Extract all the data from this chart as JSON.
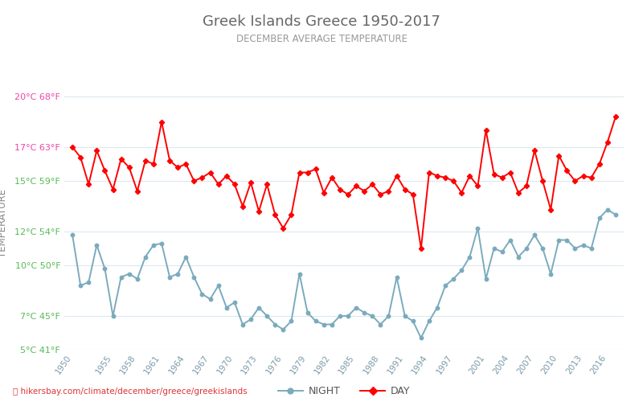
{
  "title": "Greek Islands Greece 1950-2017",
  "subtitle": "DECEMBER AVERAGE TEMPERATURE",
  "ylabel": "TEMPERATURE",
  "xlabel_url": "hikersbay.com/climate/december/greece/greekislands",
  "ylim_celsius": [
    5,
    20
  ],
  "yticks_celsius": [
    5,
    7,
    10,
    12,
    15,
    17,
    20
  ],
  "yticks_fahrenheit": [
    41,
    45,
    50,
    54,
    59,
    63,
    68
  ],
  "years": [
    1950,
    1951,
    1952,
    1953,
    1954,
    1955,
    1956,
    1957,
    1958,
    1959,
    1960,
    1961,
    1962,
    1963,
    1964,
    1965,
    1966,
    1967,
    1968,
    1969,
    1970,
    1971,
    1972,
    1973,
    1974,
    1975,
    1976,
    1977,
    1978,
    1979,
    1980,
    1981,
    1982,
    1983,
    1984,
    1985,
    1986,
    1987,
    1988,
    1989,
    1990,
    1991,
    1992,
    1993,
    1994,
    1995,
    1996,
    1997,
    1998,
    1999,
    2000,
    2001,
    2002,
    2003,
    2004,
    2005,
    2006,
    2007,
    2008,
    2009,
    2010,
    2011,
    2012,
    2013,
    2014,
    2015,
    2016,
    2017
  ],
  "day_temps": [
    17.0,
    16.4,
    14.8,
    16.8,
    15.6,
    14.5,
    16.3,
    15.8,
    14.4,
    16.2,
    16.0,
    18.5,
    16.2,
    15.8,
    16.0,
    15.0,
    15.2,
    15.5,
    14.8,
    15.3,
    14.8,
    13.5,
    14.9,
    13.2,
    14.8,
    13.0,
    12.2,
    13.0,
    15.5,
    15.5,
    15.7,
    14.3,
    15.2,
    14.5,
    14.2,
    14.7,
    14.4,
    14.8,
    14.2,
    14.4,
    15.3,
    14.5,
    14.2,
    11.0,
    15.5,
    15.3,
    15.2,
    15.0,
    14.3,
    15.3,
    14.7,
    18.0,
    15.4,
    15.2,
    15.5,
    14.3,
    14.7,
    16.8,
    15.0,
    13.3,
    16.5,
    15.6,
    15.0,
    15.3,
    15.2,
    16.0,
    17.3,
    18.8
  ],
  "night_temps": [
    11.8,
    8.8,
    9.0,
    11.2,
    9.8,
    7.0,
    9.3,
    9.5,
    9.2,
    10.5,
    11.2,
    11.3,
    9.3,
    9.5,
    10.5,
    9.3,
    8.3,
    8.0,
    8.8,
    7.5,
    7.8,
    6.5,
    6.8,
    7.5,
    7.0,
    6.5,
    6.2,
    6.7,
    9.5,
    7.2,
    6.7,
    6.5,
    6.5,
    7.0,
    7.0,
    7.5,
    7.2,
    7.0,
    6.5,
    7.0,
    9.3,
    7.0,
    6.7,
    5.7,
    6.7,
    7.5,
    8.8,
    9.2,
    9.7,
    10.5,
    12.2,
    9.2,
    11.0,
    10.8,
    11.5,
    10.5,
    11.0,
    11.8,
    11.0,
    9.5,
    11.5,
    11.5,
    11.0,
    11.2,
    11.0,
    12.8,
    13.3,
    13.0
  ],
  "day_color": "#ff0000",
  "night_color": "#7aabbc",
  "background_color": "#ffffff",
  "grid_color": "#dce8f0",
  "title_color": "#666666",
  "subtitle_color": "#999999",
  "ylabel_color": "#888888",
  "tick_label_color_green": "#55bb55",
  "tick_label_color_pink": "#ee44aa",
  "xtick_color": "#7a9aaa",
  "url_color": "#dd3333"
}
